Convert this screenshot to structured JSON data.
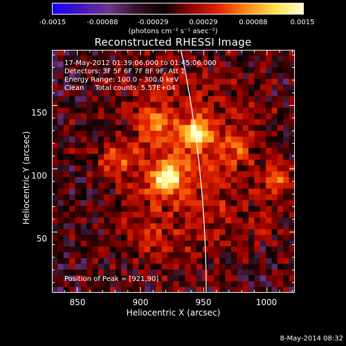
{
  "colorbar": {
    "ticks": [
      "-0.0015",
      "-0.00088",
      "-0.00029",
      "0.00029",
      "0.00088",
      "0.0015"
    ],
    "units": "(photons cm⁻² s⁻¹ asec⁻²)"
  },
  "chart_data": {
    "type": "heatmap",
    "title": "Reconstructed RHESSI Image",
    "xlabel": "Heliocentric X (arcsec)",
    "ylabel": "Heliocentric Y (arcsec)",
    "xlim": [
      830,
      1022
    ],
    "ylim": [
      2,
      194
    ],
    "xticks": [
      "850",
      "900",
      "950",
      "1000"
    ],
    "yticks": [
      "50",
      "100",
      "150"
    ],
    "zlim": [
      -0.0015,
      0.0015
    ],
    "info_lines": [
      "17-May-2012 01:39:06.000 to 01:45:06.000",
      "Detectors: 3F 5F 6F 7F 8F 9F, Att 1",
      "Energy Range: 100.0 - 300.0 keV",
      "Clean     Total counts: 5.57E+04"
    ],
    "peak_label": "Position of Peak = [921,90]",
    "peak_position": [
      921,
      90
    ],
    "sources": [
      {
        "x": 921,
        "y": 93,
        "peak": 1.0
      },
      {
        "x": 944,
        "y": 128,
        "peak": 0.9
      },
      {
        "x": 912,
        "y": 136,
        "peak": 0.55
      },
      {
        "x": 1008,
        "y": 93,
        "peak": 0.55
      },
      {
        "x": 880,
        "y": 105,
        "peak": 0.4
      },
      {
        "x": 975,
        "y": 118,
        "peak": 0.35
      },
      {
        "x": 1000,
        "y": 55,
        "peak": 0.3
      },
      {
        "x": 905,
        "y": 45,
        "peak": 0.3
      }
    ],
    "colors": {
      "low": "#1a00ff",
      "mid": "#b00000",
      "high": "#ffffc0",
      "limb": "#ffffff"
    }
  },
  "timestamp": "8-May-2014 08:32"
}
